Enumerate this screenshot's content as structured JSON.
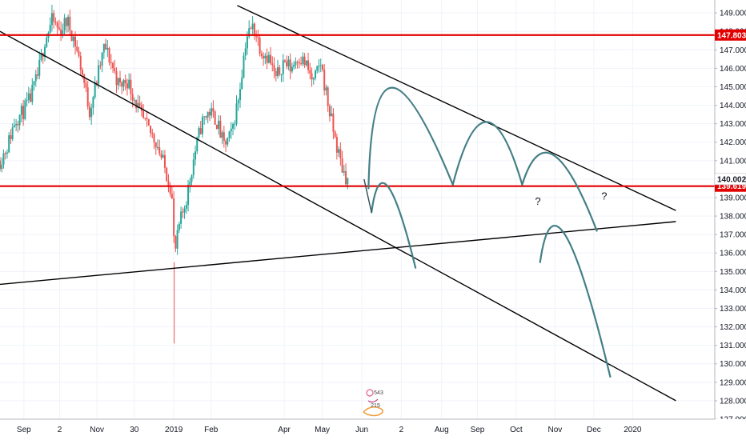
{
  "chart_data": {
    "type": "candlestick",
    "ylim": [
      127,
      149.7
    ],
    "yticks": [
      127,
      128,
      129,
      130,
      131,
      132,
      133,
      134,
      135,
      136,
      137,
      138,
      139,
      140,
      141,
      142,
      143,
      144,
      145,
      146,
      147,
      148,
      149
    ],
    "ytick_labels": [
      "127.000",
      "128.000",
      "129.000",
      "130.000",
      "131.000",
      "132.000",
      "133.000",
      "134.000",
      "135.000",
      "136.000",
      "137.000",
      "138.000",
      "139.000",
      "140.000",
      "141.000",
      "142.000",
      "143.000",
      "144.000",
      "145.000",
      "146.000",
      "147.000",
      "148.000",
      "149.000"
    ],
    "x_ticks": [
      {
        "label": "Sep",
        "x": 0.032
      },
      {
        "label": "2",
        "x": 0.08
      },
      {
        "label": "Nov",
        "x": 0.13
      },
      {
        "label": "30",
        "x": 0.18
      },
      {
        "label": "2019",
        "x": 0.233
      },
      {
        "label": "Feb",
        "x": 0.283
      },
      {
        "label": "Apr",
        "x": 0.381
      },
      {
        "label": "May",
        "x": 0.432
      },
      {
        "label": "Jun",
        "x": 0.485
      },
      {
        "label": "2",
        "x": 0.538
      },
      {
        "label": "Aug",
        "x": 0.592
      },
      {
        "label": "Sep",
        "x": 0.64
      },
      {
        "label": "Oct",
        "x": 0.692
      },
      {
        "label": "Nov",
        "x": 0.744
      },
      {
        "label": "Dec",
        "x": 0.796
      },
      {
        "label": "2020",
        "x": 0.848
      }
    ],
    "horizontal_lines": [
      {
        "label": "147.803",
        "value": 147.803
      },
      {
        "label": "139.619",
        "value": 139.619
      }
    ],
    "price_label": {
      "label": "140.002",
      "value": 140.002
    },
    "candle_range": {
      "start": 0.0,
      "end": 0.466
    },
    "close_path": [
      [
        0.0,
        141.0
      ],
      [
        0.01,
        141.8
      ],
      [
        0.02,
        143.2
      ],
      [
        0.03,
        143.6
      ],
      [
        0.04,
        144.3
      ],
      [
        0.05,
        145.5
      ],
      [
        0.06,
        147.5
      ],
      [
        0.07,
        148.6
      ],
      [
        0.08,
        148.0
      ],
      [
        0.09,
        148.6
      ],
      [
        0.1,
        147.5
      ],
      [
        0.11,
        145.8
      ],
      [
        0.12,
        143.7
      ],
      [
        0.13,
        145.4
      ],
      [
        0.14,
        147.2
      ],
      [
        0.15,
        146.2
      ],
      [
        0.16,
        145.0
      ],
      [
        0.17,
        145.4
      ],
      [
        0.18,
        144.4
      ],
      [
        0.19,
        143.3
      ],
      [
        0.2,
        142.6
      ],
      [
        0.21,
        142.0
      ],
      [
        0.22,
        140.7
      ],
      [
        0.23,
        139.4
      ],
      [
        0.234,
        135.8
      ],
      [
        0.24,
        137.4
      ],
      [
        0.25,
        139.0
      ],
      [
        0.26,
        141.2
      ],
      [
        0.27,
        143.0
      ],
      [
        0.28,
        143.7
      ],
      [
        0.29,
        143.2
      ],
      [
        0.3,
        141.8
      ],
      [
        0.31,
        142.4
      ],
      [
        0.32,
        144.5
      ],
      [
        0.33,
        147.7
      ],
      [
        0.34,
        148.3
      ],
      [
        0.35,
        147.0
      ],
      [
        0.36,
        146.6
      ],
      [
        0.37,
        145.4
      ],
      [
        0.38,
        146.4
      ],
      [
        0.39,
        146.0
      ],
      [
        0.4,
        146.7
      ],
      [
        0.41,
        146.2
      ],
      [
        0.42,
        145.2
      ],
      [
        0.43,
        146.3
      ],
      [
        0.44,
        144.0
      ],
      [
        0.45,
        142.0
      ],
      [
        0.458,
        140.7
      ],
      [
        0.466,
        139.9
      ]
    ],
    "trendlines": [
      {
        "from": [
          0.0,
          148.0
        ],
        "to": [
          0.906,
          128.0
        ]
      },
      {
        "from": [
          0.318,
          149.4
        ],
        "to": [
          0.906,
          138.3
        ]
      },
      {
        "from": [
          0.0,
          134.3
        ],
        "to": [
          0.906,
          137.7
        ]
      }
    ],
    "projections": [
      [
        [
          0.494,
          139.5
        ],
        [
          0.525,
          144.95
        ],
        [
          0.607,
          139.7
        ]
      ],
      [
        [
          0.607,
          139.7
        ],
        [
          0.652,
          143.1
        ],
        [
          0.7,
          139.7
        ]
      ],
      [
        [
          0.7,
          139.7
        ],
        [
          0.742,
          141.3
        ],
        [
          0.8,
          137.2
        ]
      ],
      [
        [
          0.498,
          138.2
        ],
        [
          0.52,
          139.6
        ],
        [
          0.557,
          135.2
        ]
      ],
      [
        [
          0.724,
          135.5
        ],
        [
          0.758,
          136.95
        ],
        [
          0.818,
          129.3
        ]
      ]
    ],
    "projection_leadin": [
      [
        0.488,
        140.0
      ],
      [
        0.498,
        138.2
      ]
    ],
    "question_marks": [
      {
        "label": "?",
        "x": 0.721,
        "y": 138.6
      },
      {
        "label": "?",
        "x": 0.81,
        "y": 138.9
      }
    ],
    "colors": {
      "up": "#26a69a",
      "down": "#ef5350",
      "trend": "#000000",
      "level": "#e30000",
      "projection": "#447f86",
      "axis_text": "#131722",
      "price_badge": "#ffffff"
    }
  },
  "watermark": {
    "lines": [
      "543",
      "215"
    ]
  }
}
